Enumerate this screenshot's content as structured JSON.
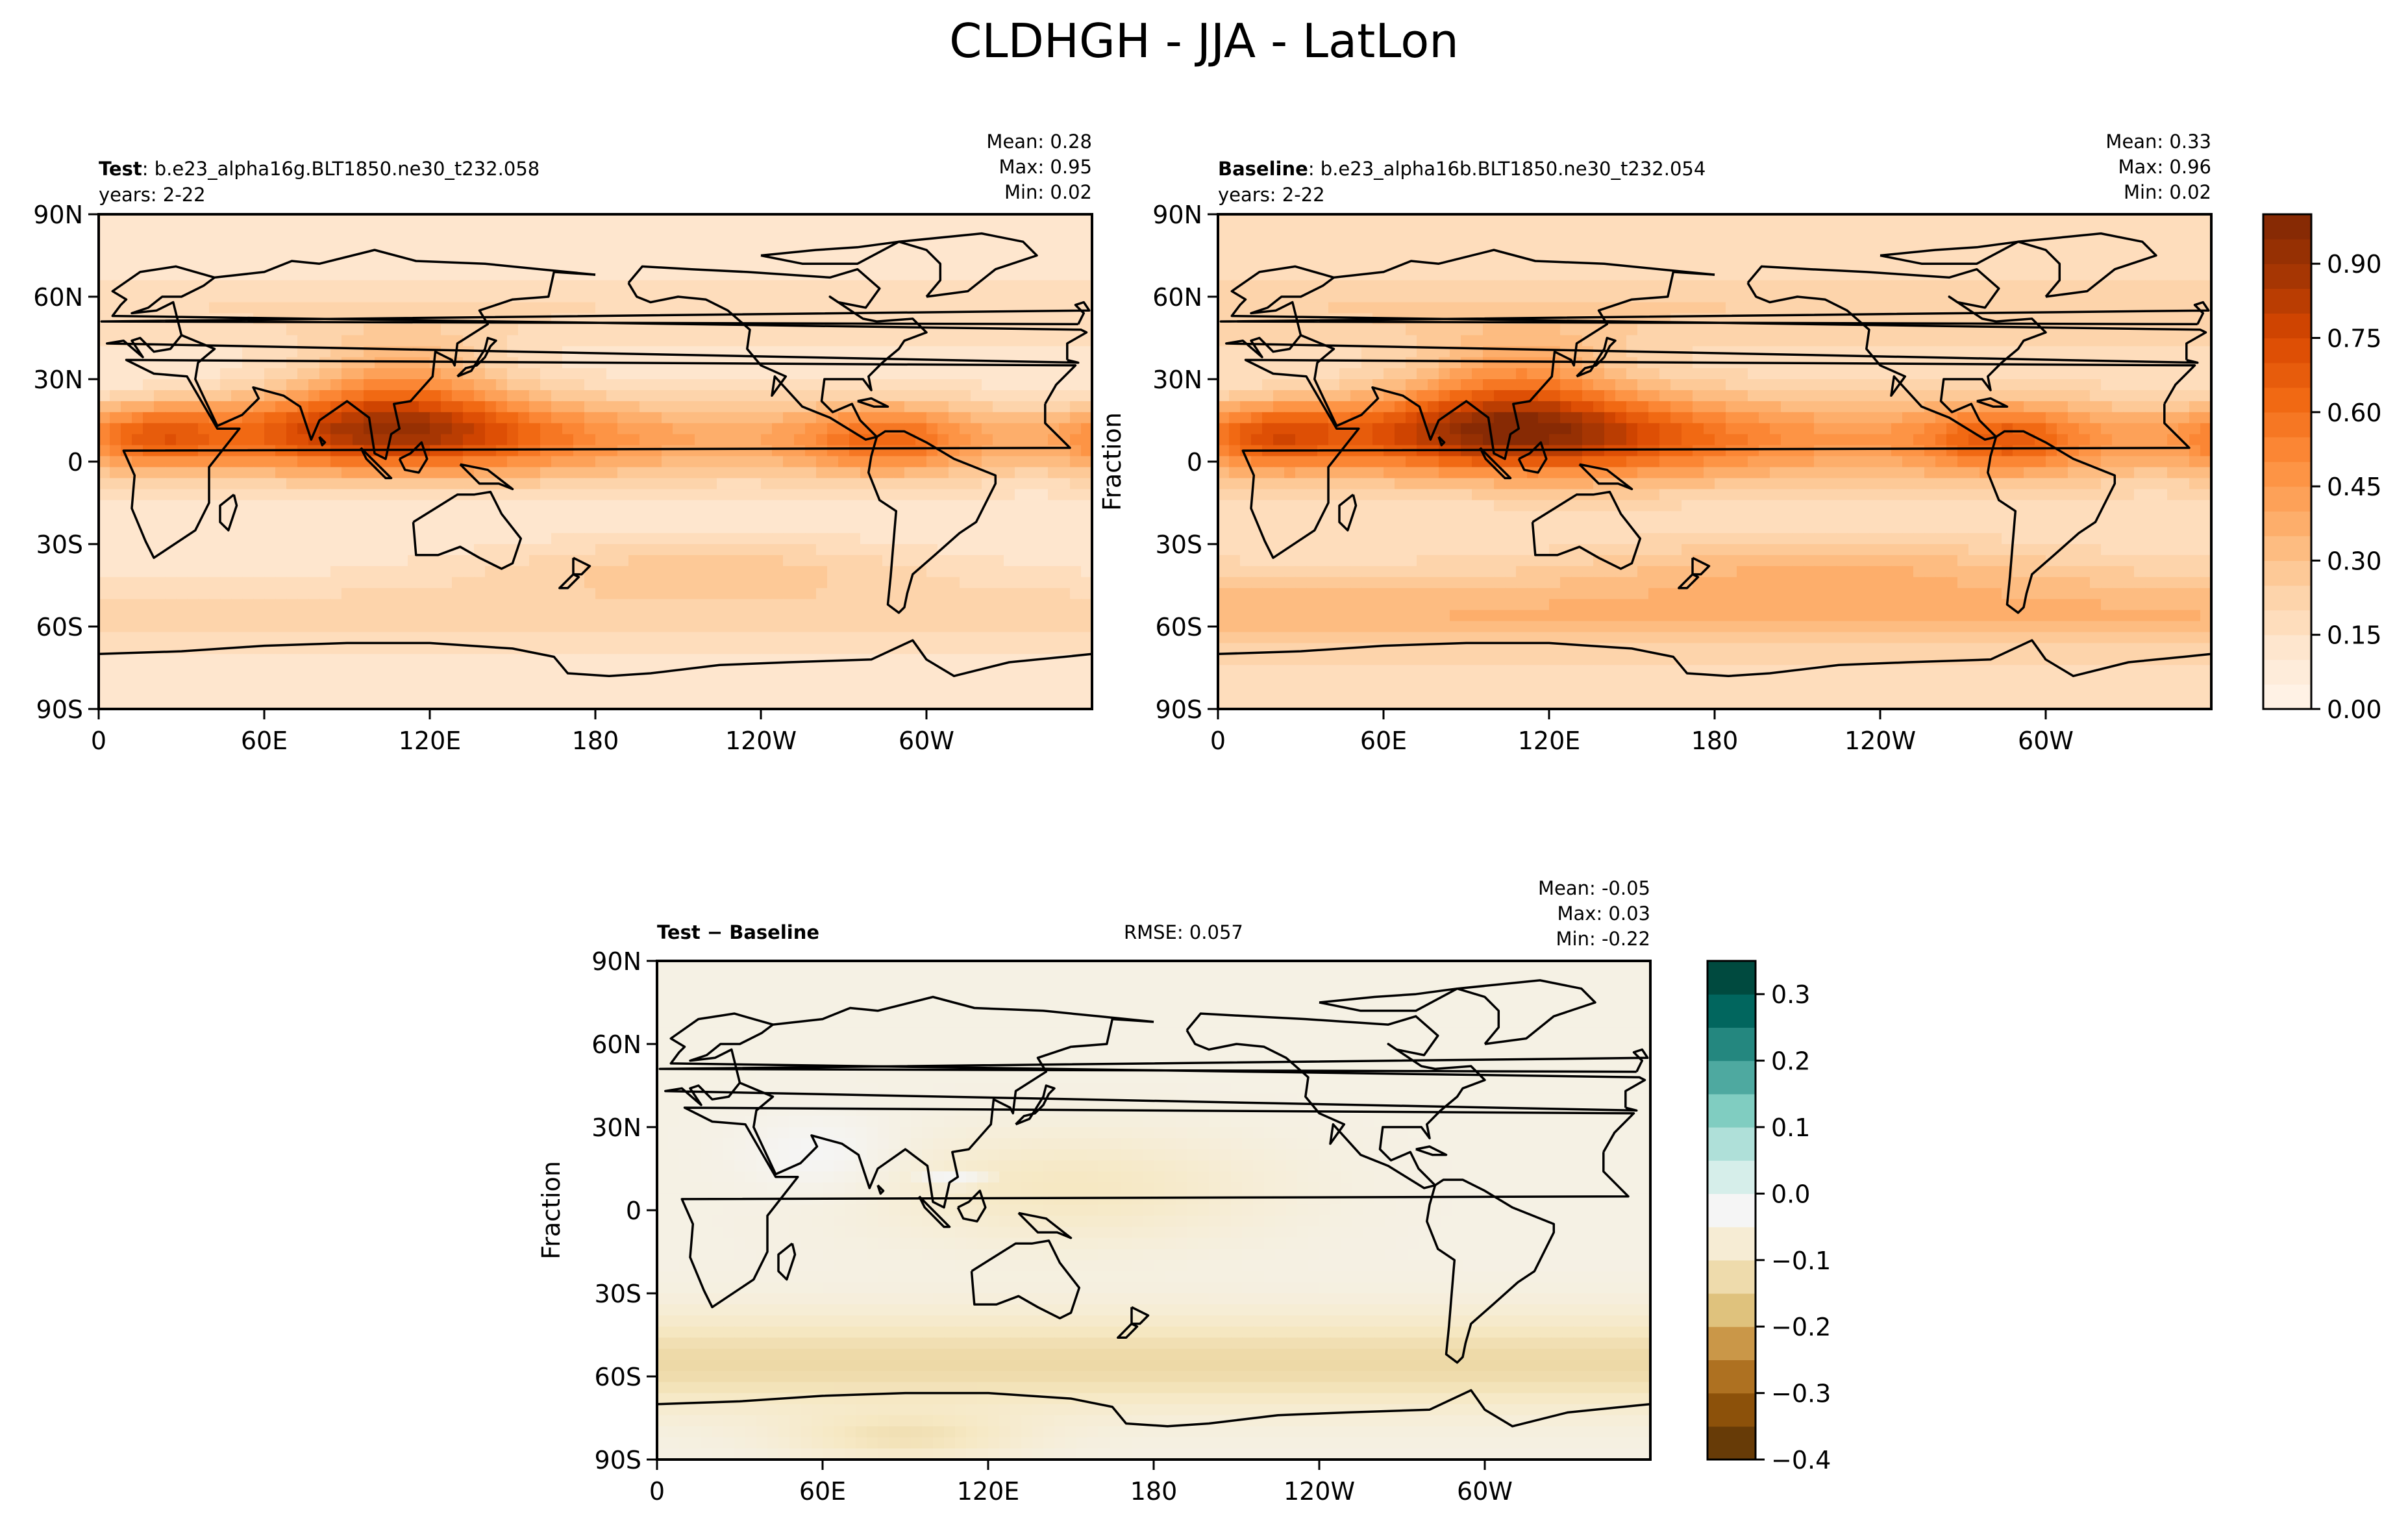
{
  "figure": {
    "title": "CLDHGH - JJA - LatLon"
  },
  "chart_data": [
    {
      "type": "heatmap",
      "panel": "test",
      "label_bold": "Test",
      "label_rest": ": b.e23_alpha16g.BLT1850.ne30_t232.058",
      "years": "years: 2-22",
      "stats": {
        "mean": "Mean:  0.28",
        "max": "Max:  0.95",
        "min": "Min:  0.02"
      },
      "ylabel": "",
      "xticks": [
        "0",
        "60E",
        "120E",
        "180",
        "120W",
        "60W"
      ],
      "yticks": [
        "90N",
        "60N",
        "30N",
        "0",
        "30S",
        "60S",
        "90S"
      ],
      "xlim": [
        0,
        360
      ],
      "ylim": [
        -90,
        90
      ],
      "colormap": "Oranges",
      "clim": [
        0,
        1
      ],
      "field_summary": {
        "mean": 0.28,
        "max": 0.95,
        "min": 0.02
      }
    },
    {
      "type": "heatmap",
      "panel": "baseline",
      "label_bold": "Baseline",
      "label_rest": ": b.e23_alpha16b.BLT1850.ne30_t232.054",
      "years": "years: 2-22",
      "stats": {
        "mean": "Mean:  0.33",
        "max": "Max:  0.96",
        "min": "Min:  0.02"
      },
      "ylabel": "Fraction",
      "xticks": [
        "0",
        "60E",
        "120E",
        "180",
        "120W",
        "60W"
      ],
      "yticks": [
        "90N",
        "60N",
        "30N",
        "0",
        "30S",
        "60S",
        "90S"
      ],
      "xlim": [
        0,
        360
      ],
      "ylim": [
        -90,
        90
      ],
      "colormap": "Oranges",
      "clim": [
        0,
        1
      ],
      "field_summary": {
        "mean": 0.33,
        "max": 0.96,
        "min": 0.02
      },
      "colorbar": {
        "ticks": [
          "0.00",
          "0.15",
          "0.30",
          "0.45",
          "0.60",
          "0.75",
          "0.90"
        ],
        "levels": 20
      }
    },
    {
      "type": "heatmap",
      "panel": "difference",
      "label_bold": "Test − Baseline",
      "rmse": "RMSE: 0.057",
      "stats": {
        "mean": "Mean: -0.05",
        "max": "Max:  0.03",
        "min": "Min: -0.22"
      },
      "ylabel": "Fraction",
      "xticks": [
        "0",
        "60E",
        "120E",
        "180",
        "120W",
        "60W"
      ],
      "yticks": [
        "90N",
        "60N",
        "30N",
        "0",
        "30S",
        "60S",
        "90S"
      ],
      "xlim": [
        0,
        360
      ],
      "ylim": [
        -90,
        90
      ],
      "colormap": "BrBG",
      "clim": [
        -0.4,
        0.35
      ],
      "field_summary": {
        "mean": -0.05,
        "max": 0.03,
        "min": -0.22
      },
      "colorbar": {
        "ticks": [
          "0.3",
          "0.2",
          "0.1",
          "0.0",
          "−0.1",
          "−0.2",
          "−0.3",
          "−0.4"
        ]
      }
    }
  ],
  "colors": {
    "oranges": [
      "#fff5eb",
      "#fee6ce",
      "#fdd0a2",
      "#fdae6b",
      "#fd8d3c",
      "#f16913",
      "#d94801",
      "#a63603",
      "#7f2704"
    ],
    "brbg_difference": [
      "#543005",
      "#8c510a",
      "#bf812d",
      "#dfc27d",
      "#f6e8c3",
      "#f5f5f5",
      "#c7eae5",
      "#80cdc1",
      "#35978f",
      "#01665e",
      "#003c30"
    ],
    "coastline": "#000000"
  }
}
